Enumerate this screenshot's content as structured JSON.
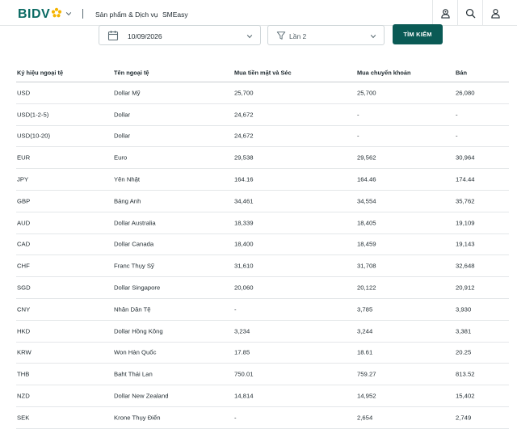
{
  "header": {
    "logo_text": "BIDV",
    "nav": [
      "Sản phẩm & Dịch vụ",
      "SMEasy"
    ],
    "icons": [
      "user-location-icon",
      "search-icon",
      "account-icon"
    ]
  },
  "filters": {
    "date_value": "10/09/2026",
    "version_value": "Lần 2",
    "search_label": "TÌM KIẾM"
  },
  "table": {
    "headers": [
      "Ký hiệu ngoại tệ",
      "Tên ngoại tệ",
      "Mua tiền mặt và Séc",
      "Mua chuyển khoản",
      "Bán"
    ],
    "rows": [
      [
        "USD",
        "Dollar Mỹ",
        "25,700",
        "25,700",
        "26,080"
      ],
      [
        "USD(1-2-5)",
        "Dollar",
        "24,672",
        "-",
        "-"
      ],
      [
        "USD(10-20)",
        "Dollar",
        "24,672",
        "-",
        "-"
      ],
      [
        "EUR",
        "Euro",
        "29,538",
        "29,562",
        "30,964"
      ],
      [
        "JPY",
        "Yên Nhật",
        "164.16",
        "164.46",
        "174.44"
      ],
      [
        "GBP",
        "Bảng Anh",
        "34,461",
        "34,554",
        "35,762"
      ],
      [
        "AUD",
        "Dollar Australia",
        "18,339",
        "18,405",
        "19,109"
      ],
      [
        "CAD",
        "Dollar Canada",
        "18,400",
        "18,459",
        "19,143"
      ],
      [
        "CHF",
        "Franc Thụy Sỹ",
        "31,610",
        "31,708",
        "32,648"
      ],
      [
        "SGD",
        "Dollar Singapore",
        "20,060",
        "20,122",
        "20,912"
      ],
      [
        "CNY",
        "Nhân Dân Tệ",
        "-",
        "3,785",
        "3,930"
      ],
      [
        "HKD",
        "Dollar Hồng Kông",
        "3,234",
        "3,244",
        "3,381"
      ],
      [
        "KRW",
        "Won Hàn Quốc",
        "17.85",
        "18.61",
        "20.25"
      ],
      [
        "THB",
        "Baht Thái Lan",
        "750.01",
        "759.27",
        "813.52"
      ],
      [
        "NZD",
        "Dollar New Zealand",
        "14,814",
        "14,952",
        "15,402"
      ],
      [
        "SEK",
        "Krone Thụy Điển",
        "-",
        "2,654",
        "2,749"
      ]
    ]
  },
  "colors": {
    "brand_green": "#0a6a63",
    "logo_gold": "#f5b400",
    "button_bg": "#0a5a55"
  }
}
